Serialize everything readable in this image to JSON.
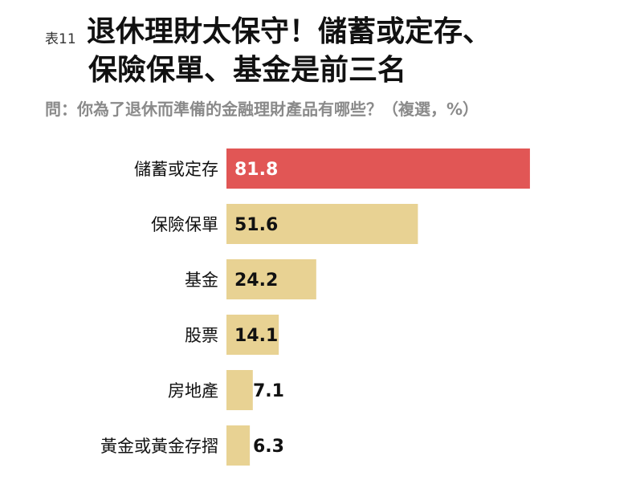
{
  "header": {
    "table_no": "表11",
    "title_line1": "退休理財太保守！儲蓄或定存、",
    "title_line2": "保險保單、基金是前三名",
    "subtitle": "問：你為了退休而準備的金融理財產品有哪些？（複選，%）"
  },
  "chart_data": {
    "type": "bar",
    "orientation": "horizontal",
    "title": "退休理財太保守！儲蓄或定存、保險保單、基金是前三名",
    "subtitle": "問：你為了退休而準備的金融理財產品有哪些？（複選，%）",
    "categories": [
      "儲蓄或定存",
      "保險保單",
      "基金",
      "股票",
      "房地產",
      "黃金或黃金存摺"
    ],
    "values": [
      81.8,
      51.6,
      24.2,
      14.1,
      7.1,
      6.3
    ],
    "value_labels": [
      "81.8",
      "51.6",
      "24.2",
      "14.1",
      "7.1",
      "6.3"
    ],
    "colors": [
      "#e15655",
      "#e8d293",
      "#e8d293",
      "#e8d293",
      "#e8d293",
      "#e8d293"
    ],
    "highlight_label_color": "#ffffff",
    "label_color": "#111111",
    "xlim": [
      0,
      100
    ],
    "grid": false,
    "legend": "none"
  }
}
